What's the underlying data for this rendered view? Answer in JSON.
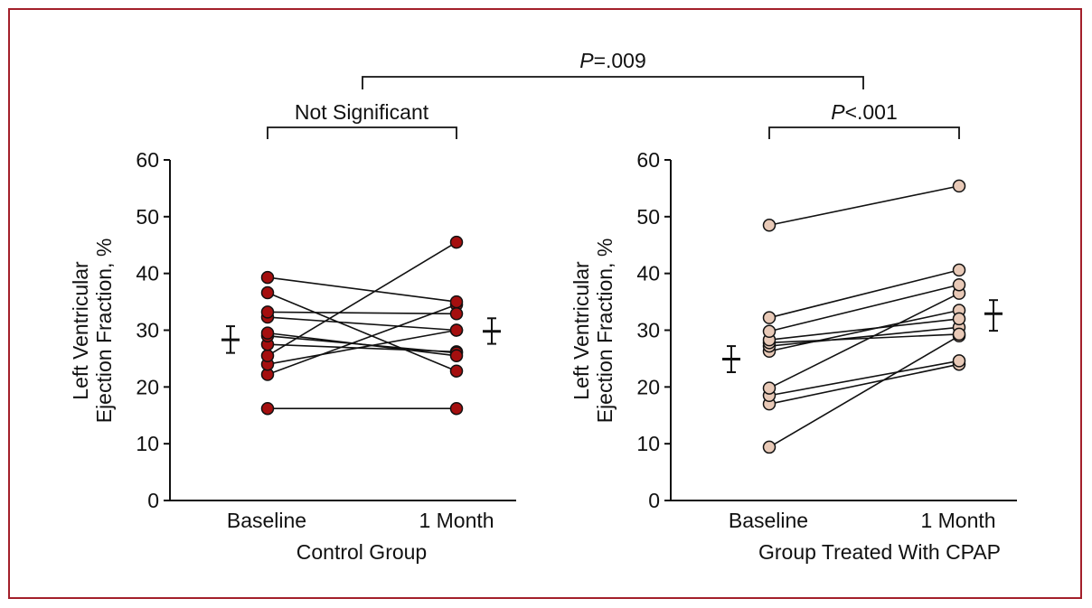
{
  "chart_data": [
    {
      "type": "paired-scatter",
      "group_label": "Control Group",
      "ylabel_line1": "Left Ventricular",
      "ylabel_line2": "Ejection Fraction, %",
      "categories": [
        "Baseline",
        "1 Month"
      ],
      "ylim": [
        0,
        60
      ],
      "yticks": [
        0,
        10,
        20,
        30,
        40,
        50,
        60
      ],
      "bracket_label": "Not Significant",
      "marker_color": "#a50f0f",
      "pairs": [
        [
          16.2,
          16.2
        ],
        [
          22.2,
          34.5
        ],
        [
          24.0,
          30.0
        ],
        [
          25.5,
          45.5
        ],
        [
          27.5,
          26.2
        ],
        [
          29.0,
          26.0
        ],
        [
          29.5,
          25.5
        ],
        [
          32.3,
          30.0
        ],
        [
          33.2,
          32.9
        ],
        [
          36.6,
          22.8
        ],
        [
          39.3,
          35.0
        ]
      ],
      "baseline_mean": 28.3,
      "baseline_err": [
        26.0,
        30.7
      ],
      "month_mean": 29.8,
      "month_err": [
        27.6,
        32.1
      ]
    },
    {
      "type": "paired-scatter",
      "group_label": "Group Treated With CPAP",
      "ylabel_line1": "Left Ventricular",
      "ylabel_line2": "Ejection Fraction, %",
      "categories": [
        "Baseline",
        "1 Month"
      ],
      "ylim": [
        0,
        60
      ],
      "yticks": [
        0,
        10,
        20,
        30,
        40,
        50,
        60
      ],
      "bracket_label_italic": "P",
      "bracket_label_rest": "<.001",
      "marker_color": "#e8c9b7",
      "pairs": [
        [
          9.4,
          29.0
        ],
        [
          17.0,
          24.0
        ],
        [
          18.5,
          24.6
        ],
        [
          19.8,
          36.5
        ],
        [
          26.3,
          33.5
        ],
        [
          27.2,
          30.5
        ],
        [
          27.8,
          29.3
        ],
        [
          28.3,
          32.0
        ],
        [
          29.8,
          38.0
        ],
        [
          32.2,
          40.6
        ],
        [
          48.5,
          55.4
        ]
      ],
      "baseline_mean": 24.9,
      "baseline_err": [
        22.6,
        27.2
      ],
      "month_mean": 32.9,
      "month_err": [
        29.9,
        35.3
      ]
    }
  ],
  "top_bracket": {
    "italic": "P",
    "rest": "=.009"
  },
  "colors": {
    "frame": "#a31f2a",
    "axis": "#111111",
    "control_marker": "#a50f0f",
    "cpap_marker": "#e8c9b7"
  }
}
